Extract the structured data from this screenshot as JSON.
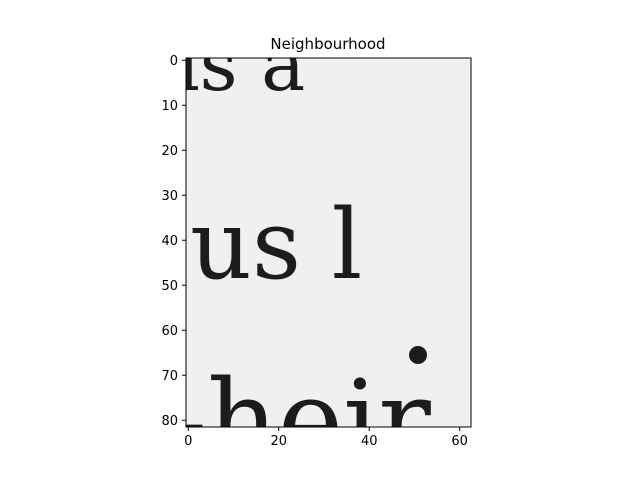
{
  "chart_data": {
    "type": "heatmap",
    "title": "Neighbourhood",
    "xlabel": "",
    "ylabel": "",
    "xlim": [
      -0.5,
      62.5
    ],
    "ylim": [
      81.5,
      -0.5
    ],
    "x_ticks": [
      0,
      20,
      40,
      60
    ],
    "y_ticks": [
      0,
      10,
      20,
      30,
      40,
      50,
      60,
      70,
      80
    ],
    "colormap": "gray",
    "grid": false,
    "image_content": {
      "row1": "is a",
      "row2": "us l",
      "row3": "-heir"
    }
  },
  "colors": {
    "paper": "#f0f0f0",
    "ink": "#1c1c1c",
    "axis": "#000000"
  }
}
